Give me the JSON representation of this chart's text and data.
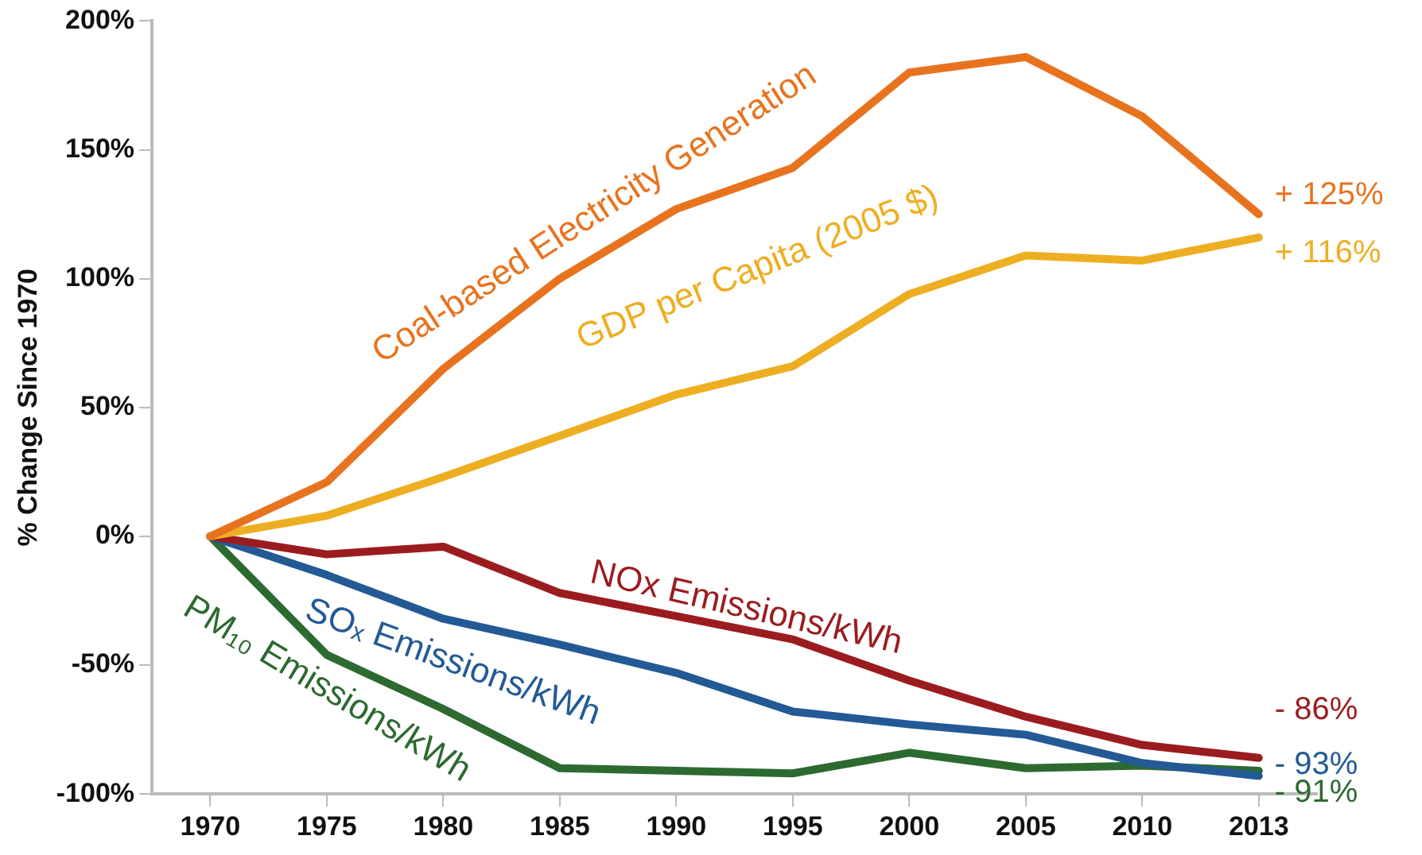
{
  "chart_data": {
    "type": "line",
    "ylabel": "% Change Since 1970",
    "categories": [
      "1970",
      "1975",
      "1980",
      "1985",
      "1990",
      "1995",
      "2000",
      "2005",
      "2010",
      "2013"
    ],
    "ylim": [
      -100,
      200
    ],
    "yticks": [
      {
        "value": -100,
        "label": "-100%"
      },
      {
        "value": -50,
        "label": "-50%"
      },
      {
        "value": 0,
        "label": "0%"
      },
      {
        "value": 50,
        "label": "50%"
      },
      {
        "value": 100,
        "label": "100%"
      },
      {
        "value": 150,
        "label": "150%"
      },
      {
        "value": 200,
        "label": "200%"
      }
    ],
    "grid": false,
    "legend": false,
    "marker": "none",
    "line_style": "solid",
    "series": [
      {
        "name": "Coal-based Electricity Generation",
        "color": "#e8731f",
        "values": [
          0,
          21,
          65,
          100,
          127,
          143,
          180,
          186,
          163,
          125
        ],
        "value_labels": [
          null,
          null,
          null,
          null,
          null,
          null,
          null,
          null,
          null,
          "+ 125%"
        ]
      },
      {
        "name": "GDP per Capita (2005 $)",
        "color": "#eeae22",
        "values": [
          0,
          8,
          23,
          39,
          55,
          66,
          94,
          109,
          107,
          116
        ],
        "value_labels": [
          null,
          null,
          null,
          null,
          null,
          null,
          null,
          null,
          null,
          "+ 116%"
        ]
      },
      {
        "name": "NOx Emissions/kWh",
        "color": "#9b1c1f",
        "values": [
          0,
          -7,
          -4,
          -22,
          -31,
          -40,
          -56,
          -70,
          -81,
          -86
        ],
        "value_labels": [
          null,
          null,
          null,
          null,
          null,
          null,
          null,
          null,
          null,
          "- 86%"
        ]
      },
      {
        "name": "SOₓ Emissions/kWh",
        "color": "#235a96",
        "values": [
          0,
          -15,
          -32,
          -42,
          -53,
          -68,
          -73,
          -77,
          -88,
          -93
        ],
        "value_labels": [
          null,
          null,
          null,
          null,
          null,
          null,
          null,
          null,
          null,
          "- 93%"
        ]
      },
      {
        "name": "PM₁₀ Emissions/kWh",
        "color": "#2d6a31",
        "values": [
          0,
          -46,
          -67,
          -90,
          -91,
          -92,
          -84,
          -90,
          -89,
          -91
        ],
        "value_labels": [
          null,
          null,
          null,
          null,
          null,
          null,
          null,
          null,
          null,
          "- 91%"
        ]
      }
    ]
  }
}
